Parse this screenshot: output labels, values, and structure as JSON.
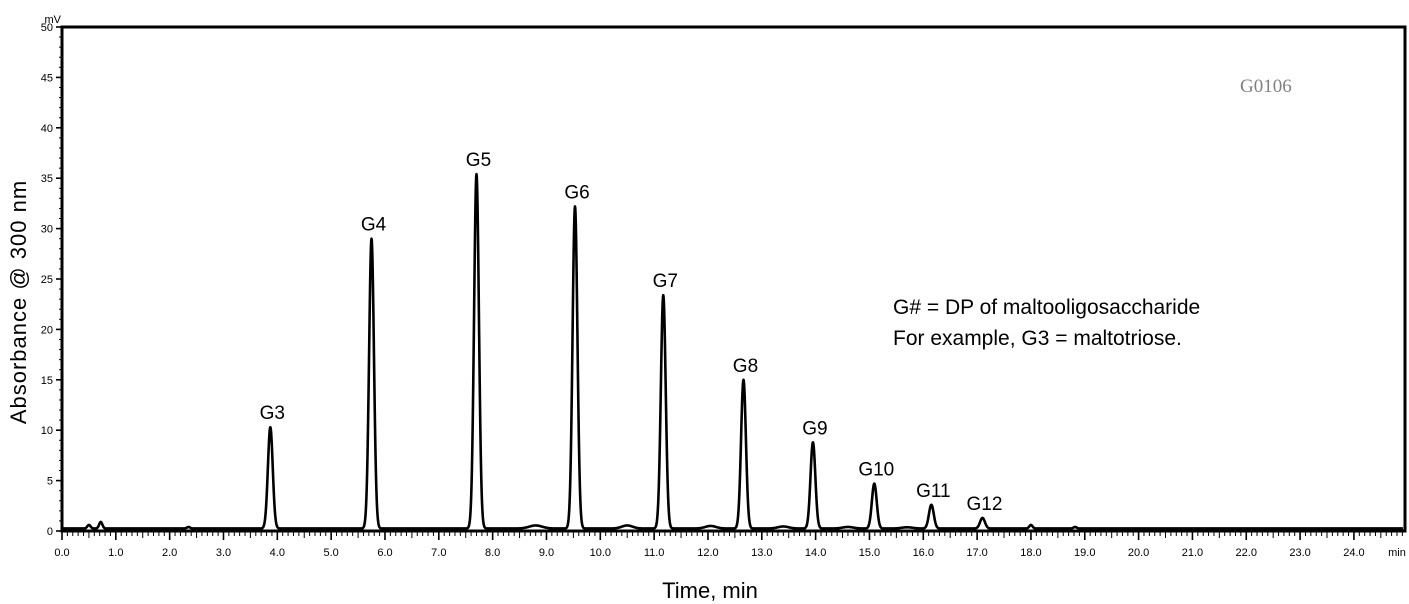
{
  "chart_data": {
    "type": "line",
    "xlabel": "Time, min",
    "ylabel": "Absorbance @ 300 nm",
    "x_unit": "min",
    "y_unit": "mV",
    "xlim": [
      0.0,
      25.5
    ],
    "ylim": [
      0,
      50
    ],
    "x_ticks": [
      "0.0",
      "1.0",
      "2.0",
      "3.0",
      "4.0",
      "5.0",
      "6.0",
      "7.0",
      "8.0",
      "9.0",
      "10.0",
      "11.0",
      "12.0",
      "13.0",
      "14.0",
      "15.0",
      "16.0",
      "17.0",
      "18.0",
      "19.0",
      "20.0",
      "21.0",
      "22.0",
      "23.0",
      "24.0"
    ],
    "y_ticks": [
      "0",
      "5",
      "10",
      "15",
      "20",
      "25",
      "30",
      "35",
      "40",
      "45",
      "50"
    ],
    "grid": false,
    "peaks": [
      {
        "label": "G3",
        "x": 3.87,
        "y": 10.3
      },
      {
        "label": "G4",
        "x": 5.75,
        "y": 29.0
      },
      {
        "label": "G5",
        "x": 7.7,
        "y": 35.4
      },
      {
        "label": "G6",
        "x": 9.53,
        "y": 32.2
      },
      {
        "label": "G7",
        "x": 11.17,
        "y": 23.4
      },
      {
        "label": "G8",
        "x": 12.66,
        "y": 15.0
      },
      {
        "label": "G9",
        "x": 13.95,
        "y": 8.8
      },
      {
        "label": "G10",
        "x": 15.09,
        "y": 4.7
      },
      {
        "label": "G11",
        "x": 16.15,
        "y": 2.6
      },
      {
        "label": "G12",
        "x": 17.1,
        "y": 1.3
      }
    ],
    "minor_peaks": [
      {
        "x": 0.5,
        "y": 0.6
      },
      {
        "x": 0.72,
        "y": 0.9
      },
      {
        "x": 2.35,
        "y": 0.4
      },
      {
        "x": 18.0,
        "y": 0.6
      },
      {
        "x": 18.82,
        "y": 0.4
      }
    ],
    "baseline": 0.25
  },
  "annotations": {
    "sample_code": "G0106",
    "note_line1": "G# = DP of maltooligosaccharide",
    "note_line2": "For example, G3 = maltotriose."
  }
}
